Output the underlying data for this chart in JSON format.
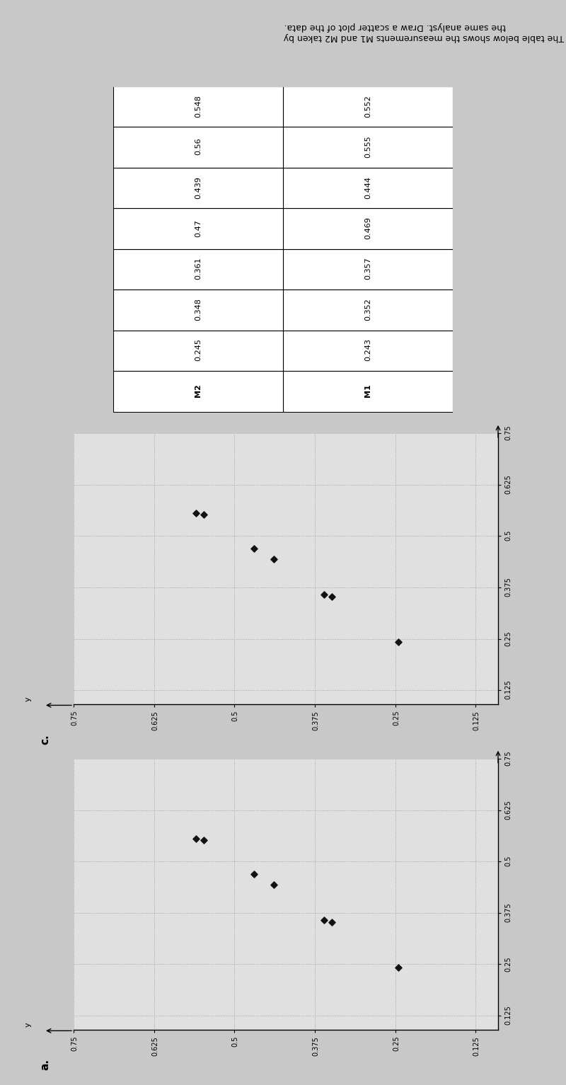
{
  "title": "The table below shows the measurements M1 and M2 taken by the same analyst. Draw a scatter plot of the data.",
  "M1": [
    0.243,
    0.352,
    0.357,
    0.469,
    0.444,
    0.555,
    0.552
  ],
  "M2": [
    0.245,
    0.348,
    0.361,
    0.47,
    0.439,
    0.56,
    0.548
  ],
  "plot_a_label": "a.",
  "plot_c_label": "c.",
  "x_ticks": [
    0.125,
    0.25,
    0.375,
    0.5,
    0.625,
    0.75
  ],
  "y_ticks": [
    0.125,
    0.25,
    0.375,
    0.5,
    0.625,
    0.75
  ],
  "x_label_on_axis": "y",
  "marker_color": "#111111",
  "marker_size": 22,
  "grid_color": "#999999",
  "bg_color": "#c8c8c8",
  "plot_bg_color": "#e0e0e0",
  "table_bg": "#ffffff",
  "font_size_ticks": 7,
  "font_size_label": 9,
  "font_size_title": 9
}
